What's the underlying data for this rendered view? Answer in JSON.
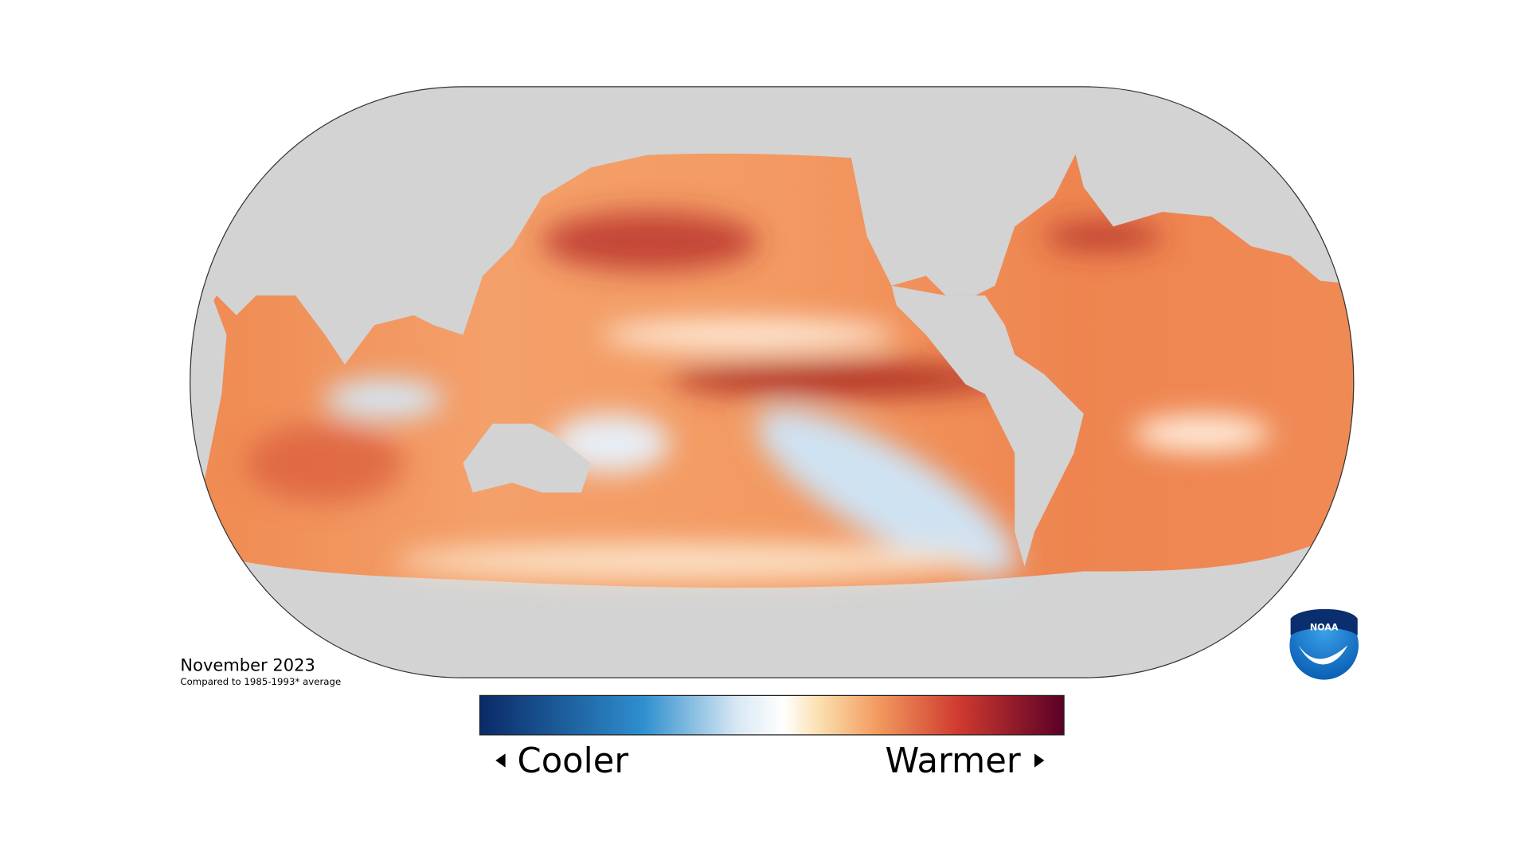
{
  "map": {
    "date": "November 2023",
    "baseline_note": "Compared to 1985-1993* average",
    "legend": {
      "low_label": "Cooler",
      "high_label": "Warmer"
    },
    "logo": "NOAA"
  }
}
